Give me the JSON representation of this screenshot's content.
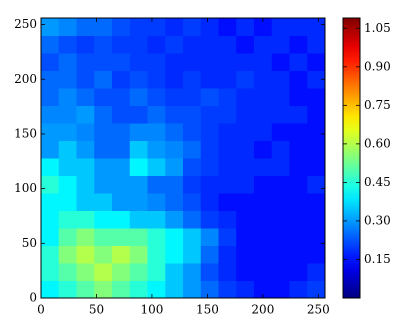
{
  "chart_data": {
    "type": "heatmap",
    "xlim": [
      0,
      256
    ],
    "ylim": [
      0,
      256
    ],
    "xticks": [
      0,
      50,
      100,
      150,
      200,
      250
    ],
    "yticks": [
      0,
      50,
      100,
      150,
      200,
      250
    ],
    "clim": [
      0,
      1.09
    ],
    "cticks": [
      0.15,
      {
        "value": 0.3,
        "label": "0.30"
      },
      0.45,
      {
        "value": 0.6,
        "label": "0.60"
      },
      0.75,
      {
        "value": 0.9,
        "label": "0.90"
      },
      1.05
    ],
    "colormap": "jet",
    "values": [
      [
        0.4,
        0.45,
        0.5,
        0.55,
        0.5,
        0.45,
        0.4,
        0.35,
        0.3,
        0.25,
        0.2,
        0.18,
        0.15,
        0.15,
        0.18,
        0.2
      ],
      [
        0.45,
        0.5,
        0.55,
        0.6,
        0.55,
        0.5,
        0.45,
        0.35,
        0.3,
        0.22,
        0.18,
        0.15,
        0.15,
        0.15,
        0.15,
        0.18
      ],
      [
        0.45,
        0.55,
        0.6,
        0.55,
        0.6,
        0.55,
        0.45,
        0.4,
        0.35,
        0.25,
        0.18,
        0.15,
        0.15,
        0.15,
        0.15,
        0.15
      ],
      [
        0.4,
        0.5,
        0.55,
        0.5,
        0.5,
        0.5,
        0.45,
        0.4,
        0.35,
        0.28,
        0.2,
        0.15,
        0.15,
        0.15,
        0.15,
        0.15
      ],
      [
        0.4,
        0.45,
        0.45,
        0.4,
        0.4,
        0.35,
        0.35,
        0.3,
        0.25,
        0.2,
        0.18,
        0.15,
        0.15,
        0.15,
        0.15,
        0.15
      ],
      [
        0.4,
        0.4,
        0.35,
        0.35,
        0.3,
        0.3,
        0.28,
        0.25,
        0.22,
        0.18,
        0.15,
        0.15,
        0.15,
        0.15,
        0.15,
        0.15
      ],
      [
        0.45,
        0.4,
        0.35,
        0.3,
        0.3,
        0.3,
        0.25,
        0.25,
        0.2,
        0.18,
        0.18,
        0.18,
        0.15,
        0.15,
        0.15,
        0.18
      ],
      [
        0.4,
        0.35,
        0.35,
        0.3,
        0.3,
        0.4,
        0.35,
        0.3,
        0.22,
        0.2,
        0.18,
        0.18,
        0.18,
        0.18,
        0.15,
        0.15
      ],
      [
        0.3,
        0.35,
        0.3,
        0.25,
        0.25,
        0.35,
        0.3,
        0.28,
        0.25,
        0.2,
        0.18,
        0.18,
        0.15,
        0.18,
        0.15,
        0.15
      ],
      [
        0.3,
        0.3,
        0.28,
        0.25,
        0.25,
        0.28,
        0.28,
        0.25,
        0.22,
        0.2,
        0.18,
        0.18,
        0.18,
        0.15,
        0.15,
        0.15
      ],
      [
        0.28,
        0.28,
        0.3,
        0.25,
        0.22,
        0.22,
        0.25,
        0.22,
        0.22,
        0.2,
        0.2,
        0.18,
        0.18,
        0.18,
        0.18,
        0.15
      ],
      [
        0.25,
        0.28,
        0.25,
        0.22,
        0.22,
        0.25,
        0.22,
        0.2,
        0.2,
        0.22,
        0.2,
        0.18,
        0.18,
        0.18,
        0.15,
        0.15
      ],
      [
        0.25,
        0.25,
        0.22,
        0.25,
        0.2,
        0.22,
        0.2,
        0.18,
        0.2,
        0.18,
        0.18,
        0.2,
        0.18,
        0.18,
        0.15,
        0.18
      ],
      [
        0.22,
        0.25,
        0.22,
        0.22,
        0.22,
        0.2,
        0.2,
        0.18,
        0.18,
        0.18,
        0.18,
        0.18,
        0.18,
        0.15,
        0.18,
        0.15
      ],
      [
        0.25,
        0.22,
        0.2,
        0.22,
        0.2,
        0.2,
        0.18,
        0.2,
        0.18,
        0.18,
        0.18,
        0.15,
        0.18,
        0.18,
        0.15,
        0.18
      ],
      [
        0.3,
        0.28,
        0.25,
        0.25,
        0.22,
        0.2,
        0.2,
        0.18,
        0.2,
        0.18,
        0.15,
        0.18,
        0.15,
        0.18,
        0.18,
        0.18
      ]
    ]
  }
}
